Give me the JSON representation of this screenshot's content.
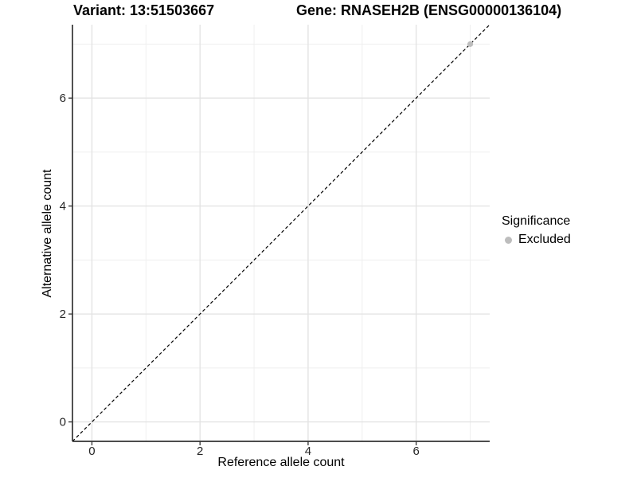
{
  "header": {
    "variant_title": "Variant: 13:51503667",
    "gene_title": "Gene: RNASEH2B (ENSG00000136104)"
  },
  "legend": {
    "title": "Significance",
    "items": [
      {
        "label": "Excluded",
        "color": "#bdbdbd"
      }
    ]
  },
  "chart_data": {
    "type": "scatter",
    "title": "Variant: 13:51503667 / Gene: RNASEH2B (ENSG00000136104)",
    "xlabel": "Reference allele count",
    "ylabel": "Alternative allele count",
    "xlim": [
      -0.36,
      7.36
    ],
    "ylim": [
      -0.36,
      7.36
    ],
    "x_ticks": [
      0,
      2,
      4,
      6
    ],
    "y_ticks": [
      0,
      2,
      4,
      6
    ],
    "x_minor_gridlines": [
      1,
      3,
      5,
      7
    ],
    "y_minor_gridlines": [
      1,
      3,
      5,
      7
    ],
    "grid": true,
    "legend_position": "right",
    "reference_line": {
      "style": "dashed",
      "slope": 1,
      "intercept": 0,
      "color": "#000000"
    },
    "series": [
      {
        "name": "Excluded",
        "color": "#bdbdbd",
        "points": [
          {
            "x": 7,
            "y": 7
          }
        ]
      }
    ],
    "colors": {
      "major_grid": "#e2e2e2",
      "minor_grid": "#efefef",
      "axis_line": "#333333",
      "tick_text": "#262626"
    }
  }
}
